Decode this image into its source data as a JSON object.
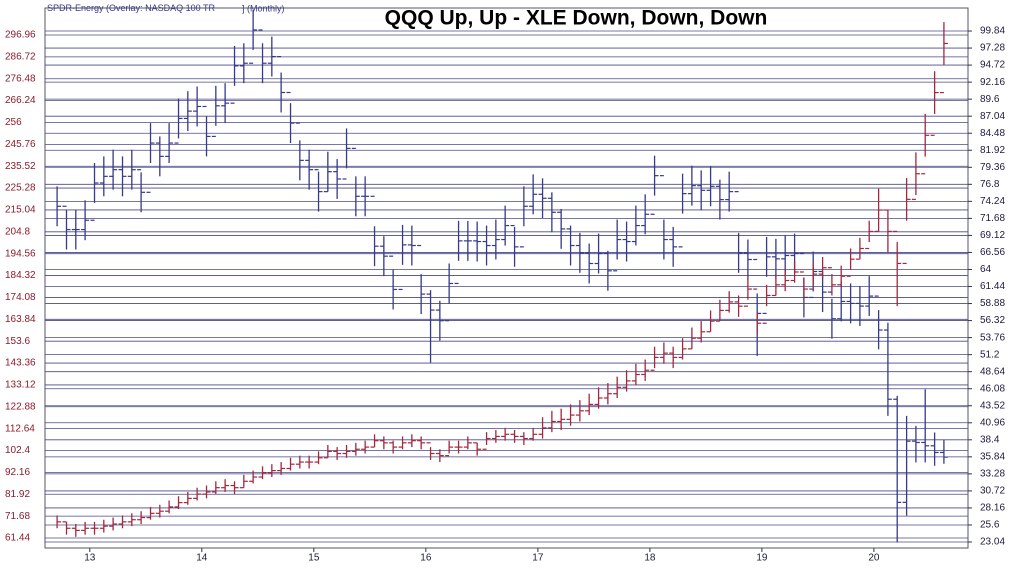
{
  "chart_data": {
    "type": "ohlc",
    "title": "QQQ Up, Up - XLE Down, Down, Down",
    "overlay_label": "(Overlay:",
    "period_label": "] (Monthly)",
    "grid": true,
    "xlim": [
      12.6,
      20.84
    ],
    "xticks": [
      13,
      14,
      15,
      16,
      17,
      18,
      19,
      20
    ],
    "ylim": [
      56.76,
      309.6
    ],
    "yticks": [
      61.44,
      71.68,
      81.92,
      92.16,
      102.4,
      112.64,
      122.88,
      133.12,
      143.36,
      153.6,
      163.84,
      174.08,
      184.32,
      194.56,
      204.8,
      215.04,
      225.28,
      235.52,
      245.76,
      256,
      266.24,
      276.48,
      286.72,
      296.96
    ],
    "y2lim": [
      22.14,
      103.3
    ],
    "y2ticks": [
      23.04,
      25.6,
      28.16,
      30.72,
      33.28,
      35.84,
      38.4,
      40.96,
      43.52,
      46.08,
      48.64,
      51.2,
      53.76,
      56.32,
      58.88,
      61.44,
      64,
      66.56,
      69.12,
      71.68,
      74.24,
      76.8,
      79.36,
      81.92,
      84.48,
      87.04,
      89.6,
      92.16,
      94.72,
      97.28,
      99.84
    ],
    "x": [
      12.708,
      12.792,
      12.875,
      12.958,
      13.042,
      13.125,
      13.208,
      13.292,
      13.375,
      13.458,
      13.542,
      13.625,
      13.708,
      13.792,
      13.875,
      13.958,
      14.042,
      14.125,
      14.208,
      14.292,
      14.375,
      14.458,
      14.542,
      14.625,
      14.708,
      14.792,
      14.875,
      14.958,
      15.042,
      15.125,
      15.208,
      15.292,
      15.375,
      15.458,
      15.542,
      15.625,
      15.708,
      15.792,
      15.875,
      15.958,
      16.042,
      16.125,
      16.208,
      16.292,
      16.375,
      16.458,
      16.542,
      16.625,
      16.708,
      16.792,
      16.875,
      16.958,
      17.042,
      17.125,
      17.208,
      17.292,
      17.375,
      17.458,
      17.542,
      17.625,
      17.708,
      17.792,
      17.875,
      17.958,
      18.042,
      18.125,
      18.208,
      18.292,
      18.375,
      18.458,
      18.542,
      18.625,
      18.708,
      18.792,
      18.875,
      18.958,
      19.042,
      19.125,
      19.208,
      19.292,
      19.375,
      19.458,
      19.542,
      19.625,
      19.708,
      19.792,
      19.875,
      19.958,
      20.042,
      20.125,
      20.208,
      20.292,
      20.375,
      20.458,
      20.542,
      20.625
    ],
    "series": [
      {
        "name": "SPDR-Energy",
        "color": "#363a88",
        "axis": "y2",
        "values": [
          73.5,
          70,
          70,
          71.4,
          77,
          78,
          79,
          78,
          79,
          75.6,
          83,
          81,
          83,
          86.7,
          87.8,
          88.5,
          84,
          88.6,
          89,
          94.6,
          95,
          100,
          95,
          96,
          90.6,
          86,
          80.4,
          79,
          75.7,
          78.7,
          77.6,
          82.2,
          75,
          75,
          67.5,
          66,
          61,
          67.7,
          67.6,
          60.3,
          57.9,
          56.3,
          61.9,
          68.3,
          68.3,
          68.2,
          67.6,
          68.5,
          70.6,
          67.4,
          73.5,
          75.3,
          74.7,
          72.6,
          70.1,
          67.6,
          66.5,
          64.9,
          66.4,
          63.8,
          68.5,
          68.2,
          70.6,
          72.3,
          78.1,
          68.5,
          67.4,
          75.4,
          76.6,
          75.9,
          76.5,
          74.5,
          75.7,
          66.5,
          65.5,
          57.4,
          65.9,
          65.6,
          66.1,
          66.4,
          59.8,
          63.7,
          60.6,
          56.6,
          59.2,
          58.9,
          58.5,
          60,
          54.9,
          44.5,
          29,
          38.2,
          38,
          37.5,
          36.5,
          35.8
        ],
        "high": [
          76.5,
          73,
          73,
          74.4,
          80,
          81,
          82,
          81,
          82,
          78.6,
          86,
          84,
          86,
          89.7,
          90.8,
          91.5,
          87,
          91.6,
          92,
          97.6,
          98,
          103,
          98,
          99,
          93.6,
          89,
          83.4,
          82,
          78.7,
          81.7,
          80.6,
          85.2,
          78,
          78,
          70.5,
          69,
          64,
          70.7,
          70.6,
          63.3,
          60.9,
          59.3,
          64.9,
          71.3,
          71.3,
          71.2,
          70.6,
          71.5,
          73.6,
          70.4,
          76.5,
          78.3,
          77.7,
          75.6,
          73.1,
          70.6,
          69.5,
          67.9,
          69.4,
          66.8,
          71.5,
          71.2,
          73.6,
          75.3,
          81.1,
          71.5,
          70.4,
          78.4,
          79.6,
          78.9,
          79.5,
          77.5,
          78.7,
          69.5,
          68.5,
          60.4,
          68.9,
          68.6,
          69.1,
          69.4,
          62.8,
          66.7,
          63.6,
          59.6,
          62.2,
          61.9,
          61.5,
          63,
          57.9,
          56,
          45,
          42,
          40.5,
          46,
          39.5,
          38.4
        ],
        "low": [
          70.5,
          67,
          67,
          68.4,
          74,
          75,
          76,
          75,
          76,
          72.6,
          80,
          78,
          80,
          83.7,
          84.8,
          85.5,
          81,
          85.6,
          86,
          91.6,
          92,
          97,
          92,
          93,
          87.6,
          83,
          77.4,
          76,
          72.7,
          75.7,
          74.6,
          79.2,
          72,
          72,
          64.5,
          63,
          58,
          64.7,
          64.6,
          57.3,
          50,
          53.3,
          58.9,
          65.3,
          65.3,
          65.2,
          64.6,
          65.5,
          67.6,
          64.4,
          70.5,
          72.3,
          71.7,
          69.6,
          67.1,
          64.6,
          63.5,
          61.9,
          63.4,
          60.8,
          65.5,
          65.2,
          67.6,
          69.3,
          75.1,
          65.5,
          64.4,
          72.4,
          73.6,
          72.9,
          73.5,
          71.5,
          72.7,
          63.5,
          62.5,
          51,
          62.9,
          62.6,
          63.1,
          63.4,
          56.8,
          60.7,
          57.6,
          53.6,
          56.2,
          55.9,
          55.5,
          57,
          52,
          42,
          23,
          27,
          35,
          35,
          34.5,
          34.8
        ]
      },
      {
        "name": "NASDAQ 100 TR",
        "color": "#a3283c",
        "axis": "y",
        "values": [
          69,
          66,
          65,
          66,
          66,
          67,
          68,
          69,
          70,
          71,
          73,
          74,
          76,
          78,
          80,
          82,
          83,
          85,
          86,
          85,
          88,
          90,
          92,
          93,
          94,
          96,
          97,
          97,
          99,
          102,
          101,
          102,
          103,
          104,
          107,
          106,
          104,
          106,
          107,
          106,
          101,
          100,
          104,
          104,
          106,
          103,
          108,
          109,
          110,
          109,
          108,
          110,
          113,
          116,
          117,
          119,
          121,
          124,
          127,
          129,
          132,
          135,
          138,
          140,
          146,
          148,
          146,
          150,
          155,
          158,
          163,
          168,
          172,
          170,
          178,
          162,
          175,
          180,
          182,
          186,
          178,
          185,
          188,
          180,
          184,
          192,
          197,
          205,
          215,
          205,
          190,
          220,
          232,
          250,
          270,
          293
        ],
        "high": [
          72,
          69,
          68,
          69,
          69,
          70,
          71,
          72,
          73,
          74,
          76,
          77,
          79,
          81,
          83,
          85,
          86,
          88,
          89,
          88,
          91,
          93,
          95,
          96,
          97,
          99,
          100,
          100,
          102,
          105,
          104,
          105,
          106,
          107,
          110,
          109,
          107,
          109,
          110,
          109,
          104,
          103,
          107,
          107,
          109,
          106,
          111,
          112,
          113,
          112,
          111,
          113,
          118,
          121,
          122,
          124,
          126,
          129,
          132,
          134,
          137,
          140,
          143,
          145,
          151,
          153,
          151,
          155,
          160,
          163,
          168,
          173,
          177,
          175,
          183,
          167,
          180,
          185,
          187,
          191,
          183,
          190,
          193,
          185,
          189,
          197,
          202,
          210,
          225,
          215,
          200,
          230,
          242,
          260,
          280,
          303
        ],
        "low": [
          66,
          63,
          62,
          63,
          63,
          64,
          65,
          66,
          67,
          68,
          70,
          71,
          73,
          75,
          77,
          79,
          80,
          82,
          83,
          82,
          85,
          87,
          89,
          90,
          91,
          93,
          94,
          94,
          96,
          99,
          98,
          99,
          100,
          101,
          104,
          103,
          101,
          103,
          104,
          103,
          98,
          97,
          101,
          101,
          103,
          100,
          105,
          106,
          107,
          106,
          105,
          107,
          108,
          111,
          112,
          114,
          116,
          119,
          122,
          124,
          127,
          130,
          133,
          135,
          141,
          143,
          141,
          145,
          150,
          153,
          158,
          163,
          167,
          165,
          173,
          157,
          170,
          175,
          177,
          181,
          173,
          180,
          183,
          175,
          179,
          187,
          192,
          200,
          205,
          195,
          170,
          210,
          222,
          240,
          260,
          283
        ]
      }
    ]
  }
}
